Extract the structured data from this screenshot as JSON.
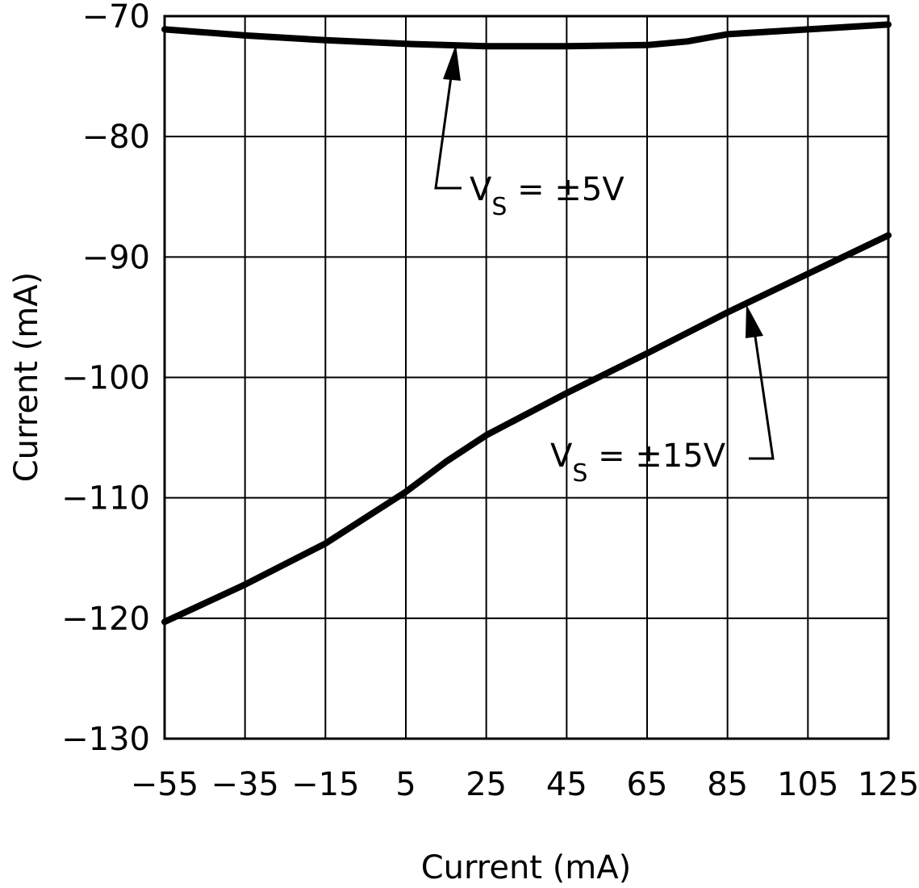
{
  "chart_data": {
    "type": "line",
    "xlabel": "Current (mA)",
    "ylabel": "Current (mA)",
    "xlim": [
      -55,
      125
    ],
    "ylim": [
      -130,
      -70
    ],
    "x_ticks": [
      -55,
      -35,
      -15,
      5,
      25,
      45,
      65,
      85,
      105,
      125
    ],
    "y_ticks": [
      -70,
      -80,
      -90,
      -100,
      -110,
      -120,
      -130
    ],
    "x_tick_labels": [
      "−55",
      "−35",
      "−15",
      "5",
      "25",
      "45",
      "65",
      "85",
      "105",
      "125"
    ],
    "y_tick_labels": [
      "−70",
      "−80",
      "−90",
      "−100",
      "−110",
      "−120",
      "−130"
    ],
    "grid": true,
    "series": [
      {
        "name": "VS = ±5V",
        "x": [
          -55,
          -35,
          -15,
          5,
          25,
          45,
          65,
          75,
          85,
          105,
          125
        ],
        "y": [
          -71.1,
          -71.6,
          -72.0,
          -72.3,
          -72.5,
          -72.5,
          -72.4,
          -72.1,
          -71.5,
          -71.1,
          -70.7
        ]
      },
      {
        "name": "VS = ±15V",
        "x": [
          -55,
          -35,
          -15,
          5,
          15,
          25,
          45,
          65,
          85,
          105,
          125
        ],
        "y": [
          -120.3,
          -117.2,
          -113.8,
          -109.5,
          -107.0,
          -104.8,
          -101.3,
          -98.0,
          -94.6,
          -91.4,
          -88.2
        ]
      }
    ],
    "annotations": [
      {
        "main": "V",
        "sub": "S",
        "rest": " = ±5V"
      },
      {
        "main": "V",
        "sub": "S",
        "rest": " = ±15V"
      }
    ]
  }
}
